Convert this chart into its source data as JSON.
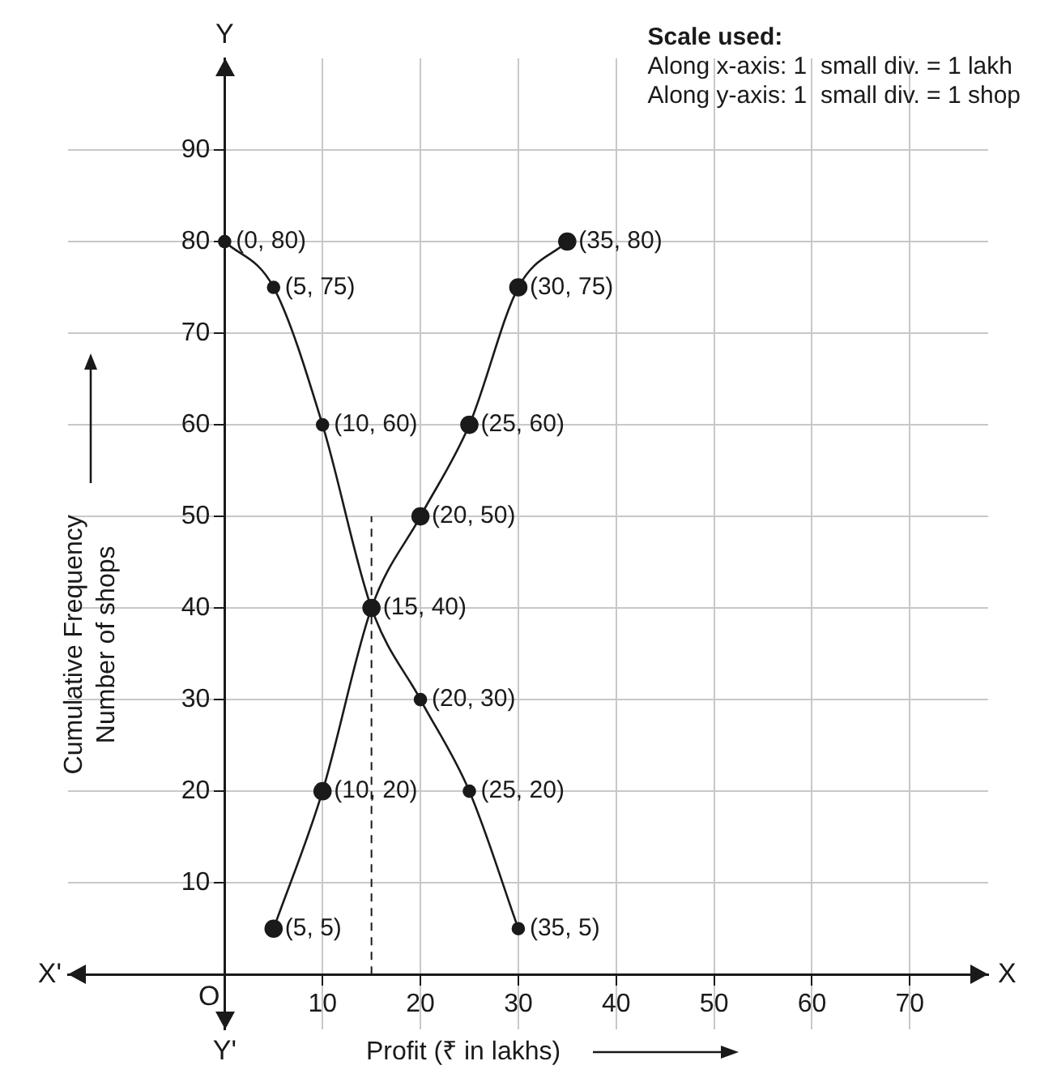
{
  "chart_data": {
    "type": "line",
    "xlabel": "Profit (₹ in lakhs)",
    "ylabel": "Cumulative Frequency\nNumber of shops",
    "series": [
      {
        "color": "#1a1a1a",
        "x": [
          0,
          5,
          10,
          15,
          20,
          25,
          30
        ],
        "values": [
          80,
          75,
          60,
          40,
          30,
          20,
          5
        ],
        "value_labels": [
          "(0, 80)",
          "(5, 75)",
          "(10, 60)",
          "(15, 40)",
          "(20, 30)",
          "(25, 20)",
          "(35, 5)"
        ]
      },
      {
        "color": "#1a1a1a",
        "x": [
          5,
          10,
          15,
          20,
          25,
          30,
          35
        ],
        "values": [
          5,
          20,
          40,
          50,
          60,
          75,
          80
        ],
        "value_labels": [
          "(5, 5)",
          "(10, 20)",
          null,
          "(20, 50)",
          "(25, 60)",
          "(30, 75)",
          "(35, 80)"
        ]
      }
    ],
    "xlim": [
      -16,
      78
    ],
    "ylim": [
      -6,
      100
    ],
    "xticks": [
      10,
      20,
      30,
      40,
      50,
      60,
      70
    ],
    "yticks": [
      10,
      20,
      30,
      40,
      50,
      60,
      70,
      80,
      90
    ],
    "grid": true,
    "marker": "circle",
    "line_style": "solid",
    "ref_lines": [
      {
        "axis": "x",
        "value": 15,
        "line_style": "dashed",
        "color": "#1a1a1a"
      }
    ],
    "annotations": [
      "Scale used:",
      "Along x-axis: 1  small div. = 1 lakh",
      "Along y-axis: 1  small div. = 1 shop",
      "X'",
      "X",
      "Y",
      "Y'",
      "O"
    ]
  }
}
